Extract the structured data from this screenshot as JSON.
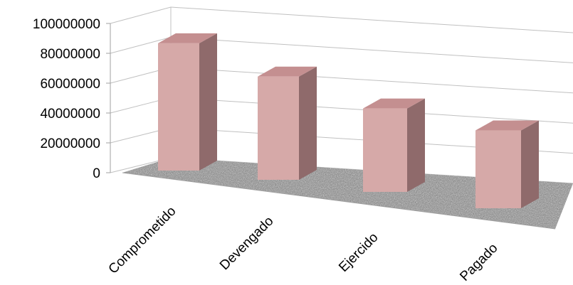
{
  "colors": {
    "bar_front": "#d6a9a8",
    "bar_side": "#8f6a6b",
    "bar_top": "#c48f90",
    "grid": "#c0c0c0",
    "floor": "#8a8a8a"
  },
  "chart_data": {
    "type": "bar",
    "style": "3d-columns",
    "categories": [
      "Comprometido",
      "Devengado",
      "Ejercido",
      "Pagado"
    ],
    "values": [
      90000000,
      73000000,
      59000000,
      55000000
    ],
    "ylim": [
      0,
      100000000
    ],
    "yticks": [
      "0",
      "20000000",
      "40000000",
      "60000000",
      "80000000",
      "100000000"
    ],
    "grid": true,
    "legend": "none",
    "floor_texture": "granite"
  }
}
